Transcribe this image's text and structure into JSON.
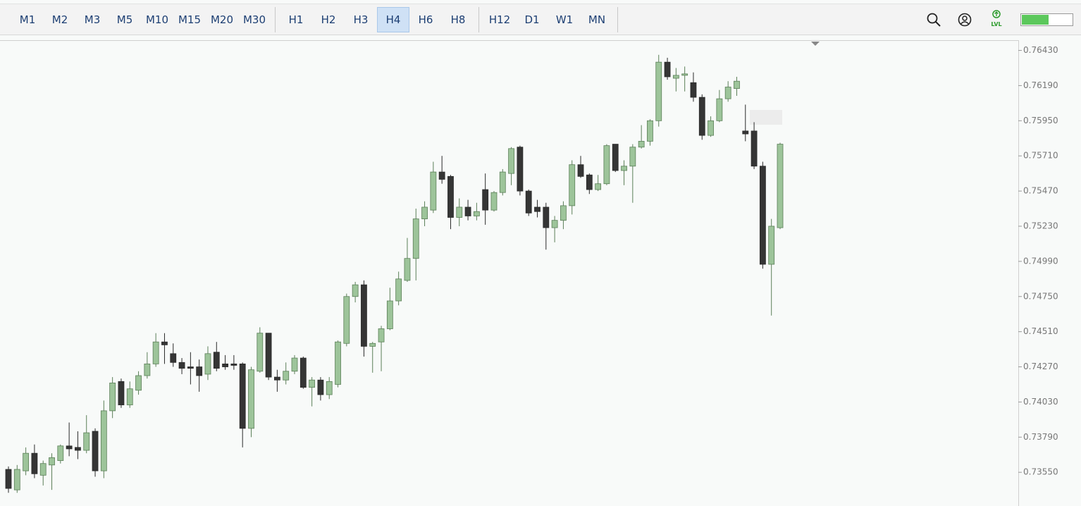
{
  "toolbar": {
    "groups": [
      [
        "M1",
        "M2",
        "M3",
        "M5",
        "M10",
        "M15",
        "M20",
        "M30"
      ],
      [
        "H1",
        "H2",
        "H3",
        "H4",
        "H6",
        "H8"
      ],
      [
        "H12",
        "D1",
        "W1",
        "MN"
      ]
    ],
    "active": "H4",
    "indicator": "LVL"
  },
  "chart_data": {
    "type": "candlestick",
    "up_color": "#9dc49a",
    "down_color": "#353535",
    "ylim": [
      0.7332,
      0.765
    ],
    "yticks": [
      {
        "value": 0.7643,
        "label": "0.76430"
      },
      {
        "value": 0.7619,
        "label": "0.76190"
      },
      {
        "value": 0.7595,
        "label": "0.75950"
      },
      {
        "value": 0.7571,
        "label": "0.75710"
      },
      {
        "value": 0.7547,
        "label": "0.75470"
      },
      {
        "value": 0.7523,
        "label": "0.75230"
      },
      {
        "value": 0.7499,
        "label": "0.74990"
      },
      {
        "value": 0.7475,
        "label": "0.74750"
      },
      {
        "value": 0.7451,
        "label": "0.74510"
      },
      {
        "value": 0.7427,
        "label": "0.74270"
      },
      {
        "value": 0.7403,
        "label": "0.74030"
      },
      {
        "value": 0.7379,
        "label": "0.73790"
      },
      {
        "value": 0.7355,
        "label": "0.73550"
      }
    ],
    "open": [
      0.7357,
      0.7343,
      0.7356,
      0.7368,
      0.7353,
      0.736,
      0.7363,
      0.7373,
      0.7372,
      0.737,
      0.7383,
      0.7356,
      0.7397,
      0.7417,
      0.7401,
      0.7411,
      0.7421,
      0.7429,
      0.7444,
      0.7436,
      0.743,
      0.7427,
      0.7427,
      0.7422,
      0.7437,
      0.7429,
      0.7429,
      0.7429,
      0.7385,
      0.7424,
      0.745,
      0.742,
      0.7418,
      0.7424,
      0.7433,
      0.7413,
      0.7418,
      0.7408,
      0.7415,
      0.7443,
      0.7475,
      0.7483,
      0.7441,
      0.7444,
      0.7453,
      0.7472,
      0.7486,
      0.7501,
      0.7528,
      0.7534,
      0.756,
      0.7557,
      0.7529,
      0.7536,
      0.753,
      0.7548,
      0.7534,
      0.7546,
      0.7559,
      0.7577,
      0.7547,
      0.7536,
      0.7536,
      0.7522,
      0.7527,
      0.7537,
      0.7565,
      0.7558,
      0.7548,
      0.7552,
      0.7579,
      0.7561,
      0.7564,
      0.7577,
      0.7581,
      0.7595,
      0.7635,
      0.7624,
      0.7626,
      0.7621,
      0.7611,
      0.7585,
      0.7595,
      0.761,
      0.7617,
      0.7588,
      0.7588,
      0.7564,
      0.7497,
      0.7522
    ],
    "high": [
      0.7359,
      0.736,
      0.7372,
      0.7374,
      0.7363,
      0.7368,
      0.7374,
      0.7389,
      0.7383,
      0.7394,
      0.7385,
      0.7404,
      0.742,
      0.7419,
      0.7417,
      0.7424,
      0.7437,
      0.745,
      0.745,
      0.7443,
      0.7433,
      0.7437,
      0.7432,
      0.7441,
      0.7444,
      0.7435,
      0.7435,
      0.743,
      0.7427,
      0.7454,
      0.745,
      0.7425,
      0.743,
      0.7435,
      0.7434,
      0.742,
      0.742,
      0.742,
      0.7445,
      0.7477,
      0.7485,
      0.7486,
      0.7444,
      0.7455,
      0.7481,
      0.7492,
      0.7515,
      0.7535,
      0.754,
      0.7567,
      0.7571,
      0.7558,
      0.7542,
      0.7541,
      0.7539,
      0.7559,
      0.7547,
      0.7562,
      0.7577,
      0.7578,
      0.7548,
      0.7541,
      0.7539,
      0.753,
      0.754,
      0.7568,
      0.7571,
      0.7559,
      0.7558,
      0.7579,
      0.7579,
      0.7568,
      0.7579,
      0.7592,
      0.7596,
      0.764,
      0.7638,
      0.7631,
      0.7632,
      0.7628,
      0.7613,
      0.7598,
      0.7616,
      0.7622,
      0.7625,
      0.7606,
      0.7594,
      0.7567,
      0.7528,
      0.758
    ],
    "low": [
      0.7341,
      0.7341,
      0.7353,
      0.7351,
      0.7346,
      0.7343,
      0.7361,
      0.7366,
      0.7364,
      0.7368,
      0.7352,
      0.7351,
      0.7392,
      0.7399,
      0.7399,
      0.7408,
      0.7419,
      0.7427,
      0.7429,
      0.7427,
      0.7422,
      0.7415,
      0.741,
      0.7418,
      0.7424,
      0.7425,
      0.7425,
      0.7372,
      0.7379,
      0.7423,
      0.7418,
      0.741,
      0.7415,
      0.7422,
      0.7412,
      0.74,
      0.7404,
      0.7405,
      0.7413,
      0.7441,
      0.7471,
      0.7434,
      0.7423,
      0.7424,
      0.7452,
      0.7469,
      0.7485,
      0.7486,
      0.7523,
      0.7532,
      0.7552,
      0.7521,
      0.7523,
      0.7527,
      0.7527,
      0.7524,
      0.7533,
      0.7544,
      0.7551,
      0.7544,
      0.753,
      0.7529,
      0.7507,
      0.7512,
      0.7521,
      0.7531,
      0.7556,
      0.7545,
      0.7547,
      0.7551,
      0.756,
      0.7551,
      0.7539,
      0.7576,
      0.7578,
      0.7591,
      0.7623,
      0.7615,
      0.7615,
      0.7608,
      0.7582,
      0.7584,
      0.7594,
      0.7608,
      0.7612,
      0.7581,
      0.7562,
      0.7494,
      0.7462,
      0.7521
    ],
    "close": [
      0.7344,
      0.7357,
      0.7368,
      0.7354,
      0.7361,
      0.7365,
      0.7373,
      0.7371,
      0.737,
      0.7382,
      0.7356,
      0.7397,
      0.7416,
      0.7401,
      0.7412,
      0.7421,
      0.7429,
      0.7444,
      0.7442,
      0.743,
      0.7426,
      0.7426,
      0.7421,
      0.7436,
      0.7426,
      0.7427,
      0.7428,
      0.7385,
      0.7425,
      0.745,
      0.742,
      0.7418,
      0.7424,
      0.7433,
      0.7413,
      0.7418,
      0.7408,
      0.7417,
      0.7444,
      0.7475,
      0.7483,
      0.7441,
      0.7443,
      0.7453,
      0.7472,
      0.7487,
      0.7501,
      0.7528,
      0.7536,
      0.756,
      0.7555,
      0.7529,
      0.7536,
      0.753,
      0.7533,
      0.7534,
      0.7546,
      0.756,
      0.7576,
      0.7547,
      0.7532,
      0.7533,
      0.7522,
      0.7527,
      0.7537,
      0.7565,
      0.7557,
      0.7548,
      0.7552,
      0.7578,
      0.7561,
      0.7564,
      0.7577,
      0.7581,
      0.7595,
      0.7635,
      0.7625,
      0.7626,
      0.7627,
      0.7611,
      0.7585,
      0.7595,
      0.761,
      0.7618,
      0.7622,
      0.7586,
      0.7564,
      0.7497,
      0.7523,
      0.7579
    ]
  }
}
